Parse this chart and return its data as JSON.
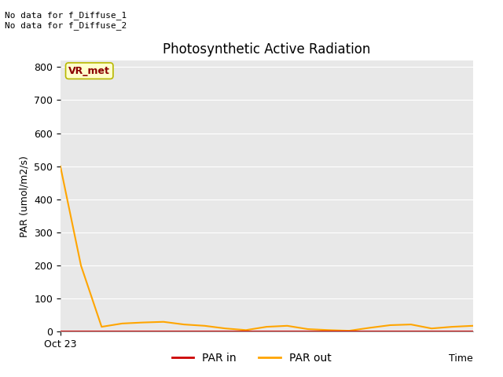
{
  "title": "Photosynthetic Active Radiation",
  "ylabel": "PAR (umol/m2/s)",
  "xlabel": "Time",
  "ylim": [
    0,
    820
  ],
  "yticks": [
    0,
    100,
    200,
    300,
    400,
    500,
    600,
    700,
    800
  ],
  "xticklabel": "Oct 23",
  "annotation_text": "No data for f_Diffuse_1\nNo data for f_Diffuse_2",
  "legend_label_vr": "VR_met",
  "legend_label_par_in": "PAR in",
  "legend_label_par_out": "PAR out",
  "par_out_color": "#FFA500",
  "par_in_color": "#CC0000",
  "vr_met_bg": "#FFFFCC",
  "vr_met_fg": "#8B0000",
  "vr_met_edge": "#B8B800",
  "bg_color": "#E8E8E8",
  "fig_bg_color": "#FFFFFF",
  "par_out_x": [
    0,
    1,
    2,
    3,
    4,
    5,
    6,
    7,
    8,
    9,
    10,
    11,
    12,
    13,
    14,
    15,
    16,
    17,
    18,
    19,
    20
  ],
  "par_out_y": [
    500,
    200,
    15,
    25,
    28,
    30,
    22,
    18,
    10,
    5,
    15,
    18,
    8,
    5,
    3,
    12,
    20,
    22,
    10,
    15,
    18
  ],
  "par_in_y": [
    0,
    0,
    0,
    0,
    0,
    0,
    0,
    0,
    0,
    0,
    0,
    0,
    0,
    0,
    0,
    0,
    0,
    0,
    0,
    0,
    0
  ],
  "grid_color": "#FFFFFF",
  "title_fontsize": 12,
  "tick_fontsize": 9,
  "label_fontsize": 9,
  "annot_fontsize": 8
}
